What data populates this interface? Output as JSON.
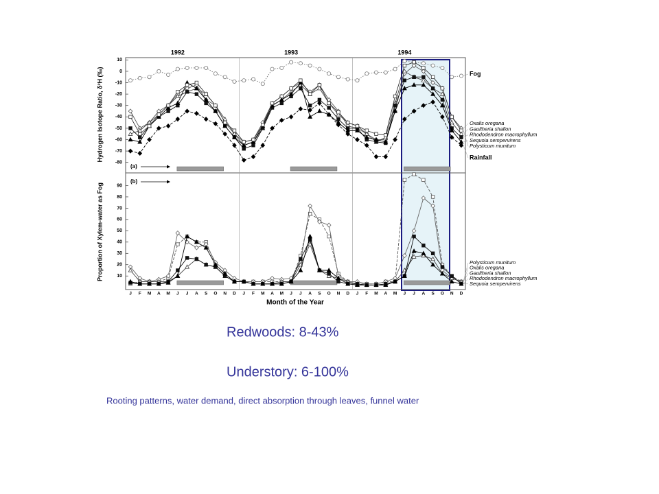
{
  "chart_data": [
    {
      "type": "line",
      "label": "(a)",
      "annotations": [
        "1992",
        "1993",
        "1994"
      ],
      "y_label": "Hydrogen Isotope Ratio, δ²H (‰)",
      "ylim": [
        -88,
        12
      ],
      "yticks": [
        -80,
        -70,
        -60,
        -50,
        -40,
        -30,
        -20,
        -10,
        0,
        10
      ],
      "series": [
        {
          "name": "Fog",
          "color": "#777777",
          "marker": "circle",
          "marker_fill": false,
          "line_style": "dotted",
          "values": [
            -8,
            -6,
            -5,
            0,
            -3,
            2,
            3,
            3,
            3,
            -2,
            -5,
            -9,
            -8,
            -7,
            -11,
            2,
            3,
            8,
            7,
            5,
            2,
            -2,
            -5,
            -7,
            -8,
            -2,
            -1,
            -1,
            2,
            9,
            8,
            7,
            5,
            3,
            -5,
            -4
          ]
        },
        {
          "name": "Oxalis oregana",
          "color": "#555555",
          "marker": "diamond",
          "marker_fill": false,
          "line_style": "solid",
          "values": [
            -35,
            -50,
            -45,
            -35,
            -30,
            -20,
            -15,
            -12,
            -25,
            -30,
            -45,
            -55,
            -62,
            -60,
            -45,
            -28,
            -22,
            -15,
            -10,
            -18,
            -12,
            -25,
            -35,
            -48,
            -50,
            -55,
            -60,
            -60,
            -35,
            -2,
            5,
            0,
            -10,
            -15,
            -40,
            -50
          ]
        },
        {
          "name": "Gaultheria shallon",
          "color": "#444444",
          "marker": "triangle",
          "marker_fill": false,
          "line_style": "solid",
          "values": [
            -55,
            -52,
            -45,
            -38,
            -30,
            -22,
            -18,
            -15,
            -20,
            -30,
            -42,
            -55,
            -65,
            -62,
            -50,
            -30,
            -25,
            -18,
            -12,
            -20,
            -15,
            -28,
            -38,
            -45,
            -48,
            -55,
            -62,
            -58,
            -28,
            0,
            -5,
            -8,
            -15,
            -20,
            -45,
            -55
          ]
        },
        {
          "name": "Rhododendron macrophyllum",
          "color": "#111111",
          "marker": "square",
          "marker_fill": true,
          "line_style": "solid",
          "values": [
            -50,
            -58,
            -48,
            -40,
            -35,
            -30,
            -18,
            -20,
            -28,
            -35,
            -48,
            -58,
            -68,
            -65,
            -50,
            -32,
            -28,
            -22,
            -15,
            -30,
            -25,
            -32,
            -42,
            -50,
            -50,
            -60,
            -62,
            -63,
            -30,
            -8,
            -5,
            -5,
            -15,
            -25,
            -50,
            -58
          ]
        },
        {
          "name": "Sequoia sempervirens",
          "color": "#000000",
          "marker": "triangle",
          "marker_fill": true,
          "line_style": "solid",
          "values": [
            -60,
            -62,
            -48,
            -40,
            -32,
            -28,
            -10,
            -15,
            -25,
            -35,
            -48,
            -58,
            -65,
            -62,
            -48,
            -30,
            -25,
            -20,
            -10,
            -40,
            -35,
            -38,
            -45,
            -52,
            -52,
            -58,
            -60,
            -62,
            -35,
            -15,
            -12,
            -12,
            -20,
            -30,
            -52,
            -62
          ]
        },
        {
          "name": "Polysticum munitum",
          "color": "#333333",
          "marker": "square",
          "marker_fill": false,
          "line_style": "solid",
          "values": [
            -40,
            -55,
            -48,
            -38,
            -30,
            -18,
            -12,
            -10,
            -20,
            -30,
            -45,
            -52,
            -62,
            -60,
            -47,
            -28,
            -22,
            -15,
            -8,
            -20,
            -12,
            -28,
            -36,
            -45,
            -48,
            -52,
            -55,
            -56,
            -22,
            5,
            8,
            3,
            -5,
            -15,
            -40,
            -52
          ]
        },
        {
          "name": "Rainfall",
          "color": "#000000",
          "marker": "diamond",
          "marker_fill": true,
          "line_style": "dashed",
          "values": [
            -70,
            -72,
            -60,
            -50,
            -48,
            -42,
            -35,
            -37,
            -42,
            -46,
            -55,
            -65,
            -78,
            -75,
            -65,
            -50,
            -43,
            -40,
            -33,
            -34,
            -28,
            -38,
            -47,
            -55,
            -60,
            -65,
            -75,
            -75,
            -60,
            -42,
            -35,
            -30,
            -27,
            -40,
            -58,
            -65
          ]
        }
      ]
    },
    {
      "type": "line",
      "label": "(b)",
      "x_label": "Month of the Year",
      "y_label": "Proportion of Xylem-water as Fog",
      "categories": [
        "J",
        "F",
        "M",
        "A",
        "M",
        "J",
        "J",
        "A",
        "S",
        "O",
        "N",
        "D",
        "J",
        "F",
        "M",
        "A",
        "M",
        "J",
        "J",
        "A",
        "S",
        "O",
        "N",
        "D",
        "J",
        "F",
        "M",
        "A",
        "M",
        "J",
        "J",
        "A",
        "S",
        "O",
        "N",
        "D"
      ],
      "ylim": [
        -2,
        100
      ],
      "yticks": [
        10,
        20,
        30,
        40,
        50,
        60,
        70,
        80,
        90
      ],
      "series": [
        {
          "name": "Polysticum munitum",
          "color": "#555555",
          "marker": "square",
          "marker_fill": false,
          "line_style": "dashed",
          "values": [
            3,
            5,
            5,
            5,
            8,
            38,
            45,
            40,
            40,
            20,
            12,
            5,
            5,
            5,
            5,
            5,
            5,
            5,
            28,
            65,
            60,
            45,
            12,
            5,
            3,
            3,
            3,
            5,
            5,
            95,
            100,
            95,
            80,
            20,
            10,
            5
          ]
        },
        {
          "name": "Oxalis oregana",
          "color": "#666666",
          "marker": "diamond",
          "marker_fill": false,
          "line_style": "solid",
          "values": [
            18,
            8,
            5,
            7,
            10,
            48,
            40,
            35,
            38,
            22,
            15,
            8,
            5,
            5,
            5,
            8,
            7,
            8,
            22,
            72,
            58,
            55,
            10,
            5,
            5,
            3,
            3,
            5,
            8,
            28,
            50,
            79,
            72,
            15,
            8,
            5
          ]
        },
        {
          "name": "Gaultheria shallon",
          "color": "#444444",
          "marker": "triangle",
          "marker_fill": false,
          "line_style": "solid",
          "values": [
            15,
            5,
            5,
            5,
            5,
            10,
            18,
            25,
            20,
            18,
            10,
            5,
            5,
            3,
            3,
            3,
            5,
            5,
            20,
            38,
            15,
            10,
            8,
            5,
            3,
            2,
            2,
            3,
            5,
            15,
            27,
            28,
            25,
            12,
            8,
            5
          ]
        },
        {
          "name": "Rhododendron macrophyllum",
          "color": "#111111",
          "marker": "square",
          "marker_fill": true,
          "line_style": "solid",
          "values": [
            4,
            3,
            3,
            3,
            5,
            15,
            26,
            25,
            20,
            18,
            10,
            5,
            5,
            3,
            3,
            3,
            3,
            5,
            25,
            42,
            15,
            12,
            5,
            3,
            3,
            2,
            2,
            3,
            5,
            10,
            45,
            37,
            30,
            18,
            10,
            3
          ]
        },
        {
          "name": "Sequoia sempervirens",
          "color": "#000000",
          "marker": "triangle",
          "marker_fill": true,
          "line_style": "solid",
          "values": [
            5,
            3,
            3,
            3,
            4,
            10,
            45,
            40,
            35,
            20,
            12,
            5,
            5,
            3,
            3,
            3,
            3,
            5,
            15,
            45,
            15,
            15,
            8,
            3,
            2,
            2,
            2,
            2,
            5,
            10,
            32,
            30,
            20,
            12,
            5,
            3
          ]
        }
      ]
    }
  ],
  "slide": {
    "lines": [
      "Redwoods: 8-43%",
      "Understory: 6-100%"
    ],
    "caption": "Rooting patterns, water demand, direct absorption through leaves, funnel water"
  }
}
